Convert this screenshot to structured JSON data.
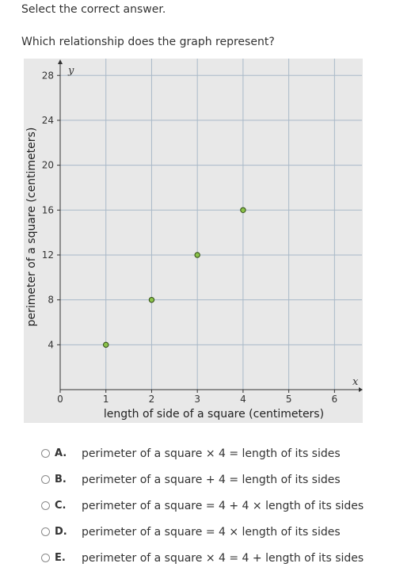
{
  "instruction": "Select the correct answer.",
  "question": "Which relationship does the graph represent?",
  "chart_data": {
    "type": "scatter",
    "xlabel": "length of side of a square (centimeters)",
    "ylabel": "perimeter of a square (centimeters)",
    "x_axis_letter": "x",
    "y_axis_letter": "y",
    "xlim": [
      0,
      6.6
    ],
    "ylim": [
      0,
      29.5
    ],
    "x_ticks": [
      0,
      1,
      2,
      3,
      4,
      5,
      6
    ],
    "y_ticks": [
      4,
      8,
      12,
      16,
      20,
      24,
      28
    ],
    "grid": true,
    "background": "#e8e8e8",
    "grid_color": "#a9b9c8",
    "point_color": "#8bc34a",
    "points": [
      {
        "x": 1,
        "y": 4
      },
      {
        "x": 2,
        "y": 8
      },
      {
        "x": 3,
        "y": 12
      },
      {
        "x": 4,
        "y": 16
      }
    ]
  },
  "options": [
    {
      "letter": "A.",
      "text": "perimeter of a square × 4 = length of its sides"
    },
    {
      "letter": "B.",
      "text": "perimeter of a square + 4 = length of its sides"
    },
    {
      "letter": "C.",
      "text": "perimeter of a square = 4 + 4 × length of its sides"
    },
    {
      "letter": "D.",
      "text": "perimeter of a square = 4 × length of its sides"
    },
    {
      "letter": "E.",
      "text": "perimeter of a square × 4 = 4 + length of its sides"
    }
  ]
}
